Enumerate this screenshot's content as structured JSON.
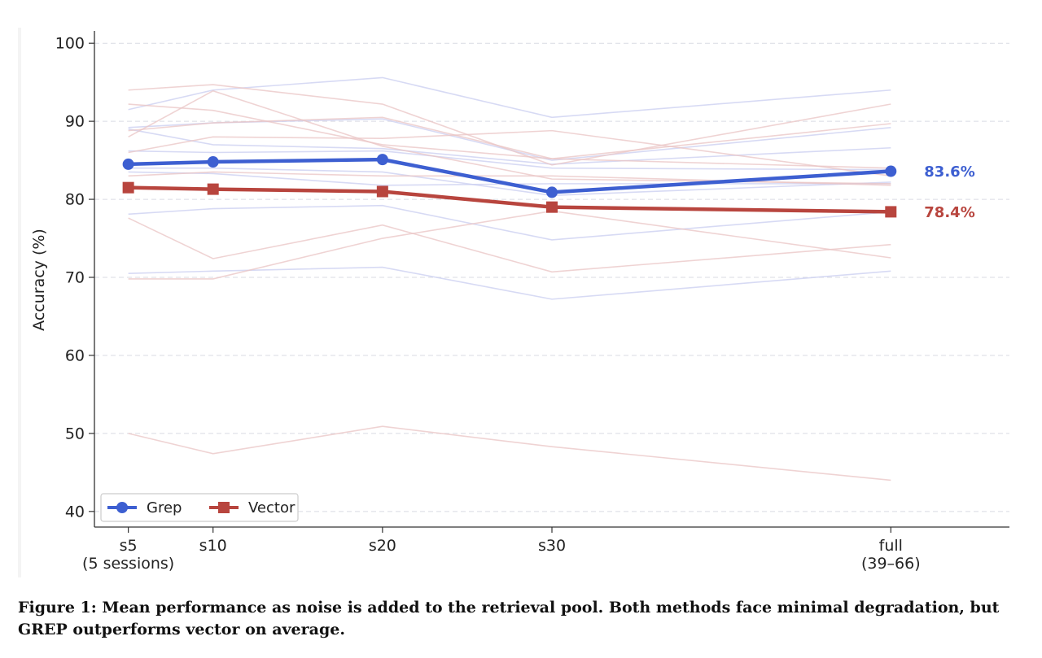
{
  "chart_data": {
    "type": "line",
    "title": "",
    "xlabel": "",
    "ylabel": "Accuracy (%)",
    "ylim": [
      38,
      102
    ],
    "x_positions": [
      5,
      10,
      20,
      30,
      50
    ],
    "xlim": [
      3,
      57
    ],
    "x_ticks": [
      {
        "pos": 5,
        "lines": [
          "s5",
          "(5 sessions)"
        ]
      },
      {
        "pos": 10,
        "lines": [
          "s10"
        ]
      },
      {
        "pos": 20,
        "lines": [
          "s20"
        ]
      },
      {
        "pos": 30,
        "lines": [
          "s30"
        ]
      },
      {
        "pos": 50,
        "lines": [
          "full",
          "(39–66)"
        ]
      }
    ],
    "y_ticks": [
      40,
      50,
      60,
      70,
      80,
      90,
      100
    ],
    "grid": "horizontal-dashed",
    "legend": "lower-left",
    "colors": {
      "grep": "#3d5fd1",
      "vector": "#b8453e",
      "grep_bg": "#c9cdf0",
      "vector_bg": "#e9c4c4"
    },
    "series": [
      {
        "name": "Grep",
        "marker": "circle",
        "color": "#3d5fd1",
        "values": [
          84.5,
          84.8,
          85.1,
          80.9,
          83.6
        ],
        "end_label": "83.6%"
      },
      {
        "name": "Vector",
        "marker": "square",
        "color": "#b8453e",
        "values": [
          81.5,
          81.3,
          81.0,
          79.0,
          78.4
        ],
        "end_label": "78.4%"
      }
    ],
    "background_lines": {
      "grep": [
        [
          91.5,
          94.0,
          95.6,
          90.5,
          94.0
        ],
        [
          89.2,
          89.8,
          90.3,
          85.0,
          89.2
        ],
        [
          89.0,
          87.0,
          86.5,
          84.5,
          86.6
        ],
        [
          86.2,
          86.0,
          86.2,
          84.0,
          83.8
        ],
        [
          84.0,
          84.0,
          83.5,
          80.5,
          82.2
        ],
        [
          83.5,
          83.3,
          81.8,
          82.0,
          82.0
        ],
        [
          78.1,
          78.8,
          79.2,
          74.8,
          78.4
        ],
        [
          70.5,
          70.8,
          71.3,
          67.2,
          70.8
        ]
      ],
      "vector": [
        [
          94.0,
          94.7,
          92.2,
          84.4,
          92.2
        ],
        [
          92.2,
          91.4,
          87.0,
          85.2,
          89.7
        ],
        [
          88.0,
          93.9,
          86.8,
          82.6,
          82.0
        ],
        [
          88.8,
          89.8,
          90.5,
          85.2,
          84.0
        ],
        [
          86.0,
          88.0,
          87.8,
          88.8,
          83.0
        ],
        [
          83.0,
          83.5,
          83.0,
          83.0,
          81.8
        ],
        [
          77.6,
          72.4,
          76.7,
          70.7,
          74.2
        ],
        [
          69.8,
          69.8,
          75.0,
          78.5,
          72.5
        ],
        [
          50.0,
          47.4,
          50.9,
          48.3,
          44.0
        ]
      ]
    }
  },
  "caption": {
    "text": "Figure 1: Mean performance as noise is added to the retrieval pool. Both methods face minimal degradation, but GREP outperforms vector on average."
  }
}
